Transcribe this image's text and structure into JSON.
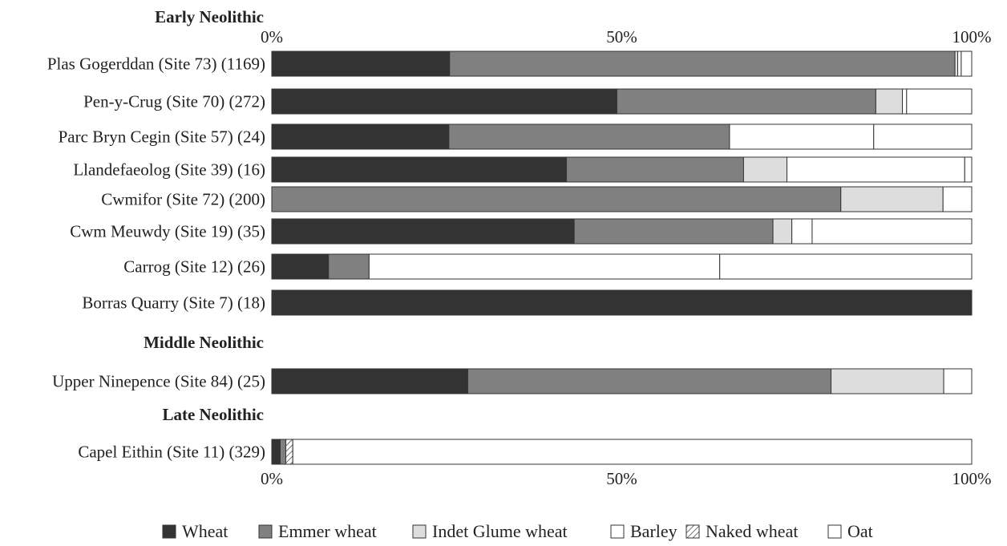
{
  "chart_data": {
    "type": "bar",
    "orientation": "horizontal",
    "stacked": true,
    "percent": true,
    "xlim": [
      0,
      100
    ],
    "ticks": [
      "0%",
      "50%",
      "100%"
    ],
    "groups": [
      {
        "label": "Early Neolithic",
        "categories": [
          "Plas Gogerddan (Site 73) (1169)",
          "Pen-y-Crug (Site 70) (272)",
          "Parc Bryn Cegin (Site 57) (24)",
          "Llandefaeolog (Site 39) (16)",
          "Cwmifor (Site 72) (200)",
          "Cwm Meuwdy (Site 19) (35)",
          "Carrog (Site 12) (26)",
          "Borras Quarry (Site 7) (18)"
        ]
      },
      {
        "label": "Middle Neolithic",
        "categories": [
          "Upper Ninepence (Site 84) (25)"
        ]
      },
      {
        "label": "Late Neolithic",
        "categories": [
          "Capel Eithin (Site 11) (329)"
        ]
      }
    ],
    "series": [
      {
        "name": "Wheat",
        "color": "#333333",
        "pattern": "solid",
        "values": [
          25.4,
          49.3,
          25.3,
          42.1,
          0,
          43.2,
          8.1,
          100,
          28.0,
          1.2
        ]
      },
      {
        "name": "Emmer wheat",
        "color": "#808080",
        "pattern": "solid",
        "values": [
          72.2,
          37.0,
          40.1,
          25.3,
          81.3,
          28.4,
          5.8,
          0,
          51.9,
          0.8
        ]
      },
      {
        "name": "Indet Glume wheat",
        "color": "#dddddd",
        "pattern": "solid",
        "values": [
          0.4,
          3.8,
          0,
          6.2,
          14.6,
          2.7,
          0,
          0,
          16.1,
          0
        ]
      },
      {
        "name": "Barley",
        "color": "#ffffff",
        "pattern": "solid",
        "values": [
          0.5,
          0.6,
          20.6,
          25.4,
          0,
          2.9,
          50.1,
          0,
          0,
          0
        ]
      },
      {
        "name": "Naked wheat",
        "color": "#ffffff",
        "pattern": "hatch",
        "values": [
          0,
          0,
          0,
          0,
          0,
          0,
          0,
          0,
          0,
          1.0
        ]
      },
      {
        "name": "Oat",
        "color": "#ffffff",
        "pattern": "solid",
        "values": [
          1.5,
          9.3,
          14.0,
          1.0,
          4.1,
          22.8,
          36.0,
          0,
          4.0,
          97.0
        ]
      }
    ]
  }
}
